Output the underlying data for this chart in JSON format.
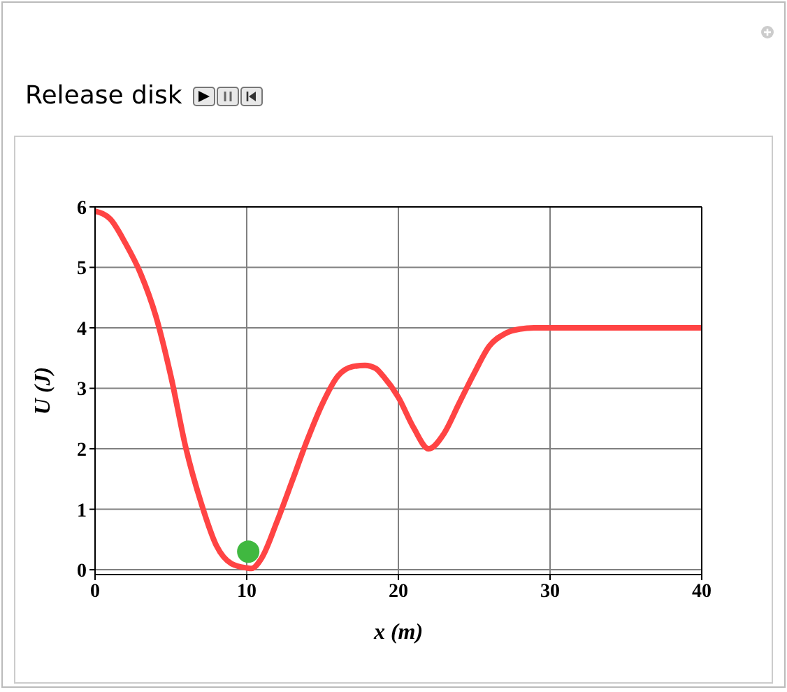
{
  "chart_data": {
    "type": "line",
    "xlabel": "x (m)",
    "ylabel": "U (J)",
    "annotations": [
      "Release disk"
    ],
    "xlim": [
      0,
      40
    ],
    "ylim": [
      -0.08,
      6
    ],
    "xticks": [
      0,
      10,
      20,
      30,
      40
    ],
    "yticks": [
      0,
      1,
      2,
      3,
      4,
      5,
      6
    ],
    "grid": true,
    "series": [
      {
        "color": "#ff4444",
        "x": [
          0,
          1,
          2,
          3,
          4,
          5,
          6,
          7,
          8,
          9,
          10,
          10.3,
          11,
          12,
          13,
          14,
          15,
          16,
          17,
          17.8,
          18.5,
          19,
          20,
          21,
          22,
          23,
          24,
          25,
          26,
          27,
          28,
          29,
          30,
          40
        ],
        "values": [
          5.93,
          5.8,
          5.4,
          4.9,
          4.2,
          3.2,
          2.0,
          1.1,
          0.4,
          0.1,
          0.03,
          0.02,
          0.2,
          0.8,
          1.47,
          2.15,
          2.75,
          3.2,
          3.36,
          3.38,
          3.33,
          3.2,
          2.85,
          2.35,
          2.0,
          2.25,
          2.75,
          3.25,
          3.7,
          3.9,
          3.98,
          4.0,
          4.0,
          4.0
        ]
      },
      {
        "type": "scatter",
        "color": "#40b840",
        "x": [
          10.1
        ],
        "values": [
          0.3
        ]
      }
    ]
  }
}
